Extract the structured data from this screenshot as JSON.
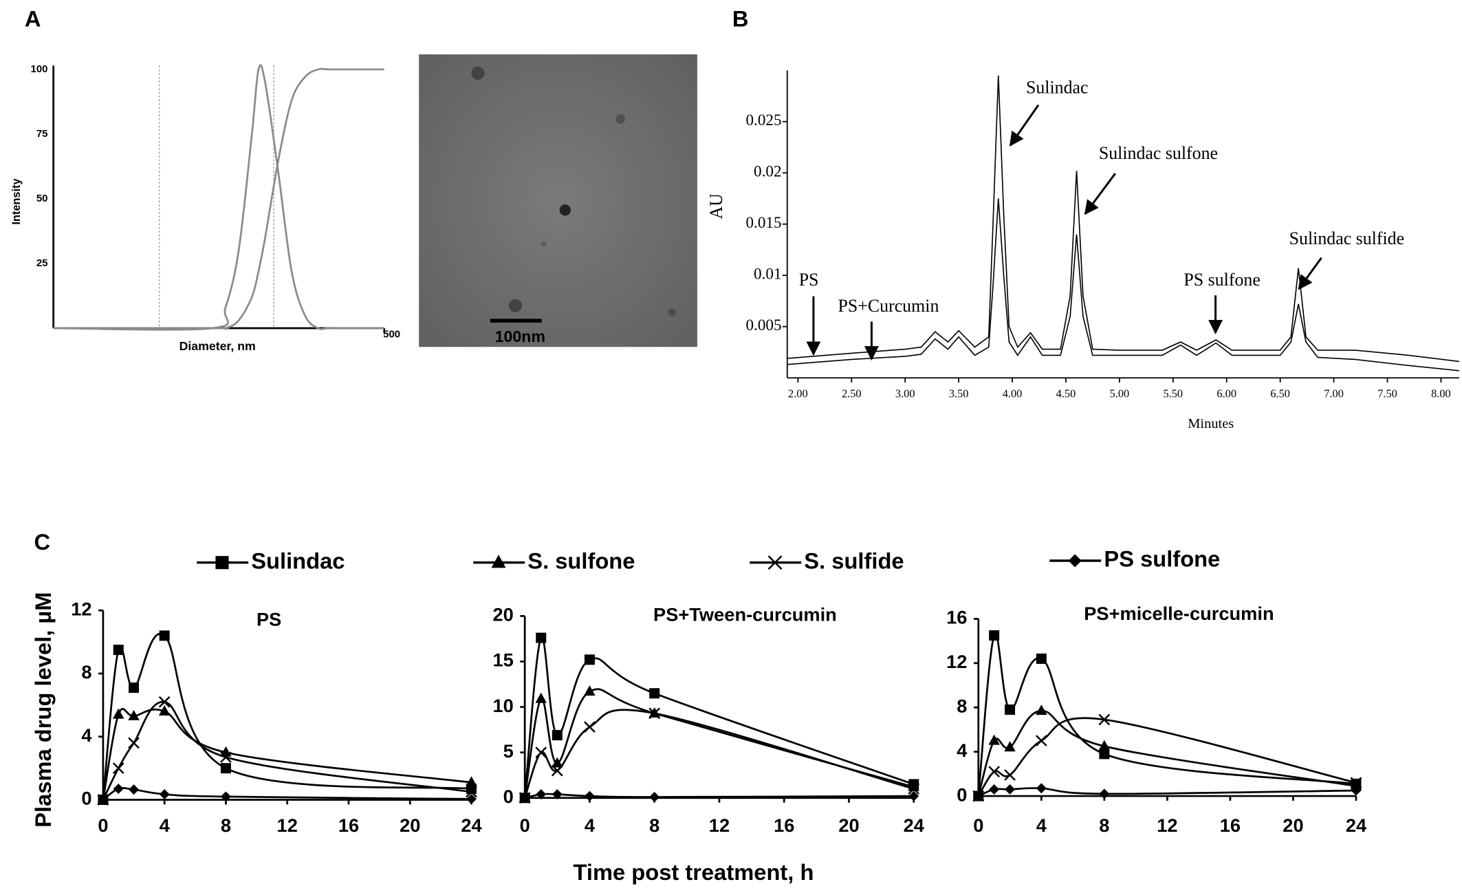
{
  "panel_labels": [
    "A",
    "B",
    "C"
  ],
  "tem_image": {
    "scale_bar": "100nm"
  },
  "chart_data": [
    {
      "type": "line",
      "xlabel": "Diameter, nm",
      "ylabel": "Intensity",
      "x": [
        0,
        240,
        260,
        280,
        300,
        310,
        320,
        340,
        360,
        380,
        400,
        420,
        500
      ],
      "series": [
        {
          "color": "#8a8a8a",
          "values": [
            0,
            0,
            8,
            30,
            75,
            100,
            95,
            60,
            22,
            5,
            0,
            0,
            0
          ]
        },
        {
          "color": "#8a8a8a",
          "values": [
            0,
            0,
            0,
            3,
            12,
            22,
            35,
            65,
            88,
            97,
            100,
            100,
            100
          ]
        }
      ],
      "vlines": [
        160,
        333
      ],
      "smooth": true,
      "xlim": [
        0,
        500
      ],
      "ylim": [
        0,
        100
      ],
      "xticks": [
        500
      ],
      "yticks": [
        25,
        50,
        75,
        100
      ]
    },
    {
      "type": "line",
      "xlabel": "Minutes",
      "ylabel": "AU",
      "x": [
        1.9,
        2.5,
        3.0,
        3.15,
        3.28,
        3.4,
        3.5,
        3.65,
        3.78,
        3.82,
        3.87,
        3.92,
        3.97,
        4.05,
        4.17,
        4.28,
        4.45,
        4.54,
        4.6,
        4.66,
        4.75,
        5.0,
        5.4,
        5.57,
        5.72,
        5.9,
        6.05,
        6.5,
        6.6,
        6.67,
        6.74,
        6.85,
        7.2,
        7.7,
        8.17
      ],
      "series": [
        {
          "color": "#000000",
          "values": [
            0.0019,
            0.0024,
            0.0028,
            0.003,
            0.0045,
            0.0035,
            0.0046,
            0.003,
            0.004,
            0.015,
            0.0295,
            0.016,
            0.005,
            0.003,
            0.0044,
            0.0028,
            0.0028,
            0.008,
            0.0202,
            0.008,
            0.0028,
            0.0027,
            0.0027,
            0.0035,
            0.0027,
            0.0037,
            0.0027,
            0.0027,
            0.004,
            0.0107,
            0.004,
            0.0027,
            0.0027,
            0.0022,
            0.0016
          ]
        },
        {
          "color": "#000000",
          "values": [
            0.0013,
            0.0018,
            0.0021,
            0.0023,
            0.0038,
            0.0028,
            0.004,
            0.0022,
            0.003,
            0.009,
            0.0175,
            0.01,
            0.0035,
            0.0022,
            0.004,
            0.0022,
            0.0022,
            0.006,
            0.014,
            0.006,
            0.0022,
            0.0022,
            0.0022,
            0.0032,
            0.0022,
            0.0034,
            0.0022,
            0.0022,
            0.0035,
            0.0072,
            0.0035,
            0.002,
            0.0018,
            0.0012,
            0.0007
          ]
        }
      ],
      "annotations": [
        "PS",
        "PS+Curcumin",
        "Sulindac",
        "Sulindac sulfone",
        "PS sulfone",
        "Sulindac sulfide"
      ],
      "smooth": false,
      "xlim": [
        1.9,
        8.17
      ],
      "ylim": [
        0,
        0.03
      ],
      "xticks": [
        {
          "value": 2,
          "label": "2.00"
        },
        {
          "value": 2.5,
          "label": "2.50"
        },
        {
          "value": 3,
          "label": "3.00"
        },
        {
          "value": 3.5,
          "label": "3.50"
        },
        {
          "value": 4,
          "label": "4.00"
        },
        {
          "value": 4.5,
          "label": "4.50"
        },
        {
          "value": 5,
          "label": "5.00"
        },
        {
          "value": 5.5,
          "label": "5.50"
        },
        {
          "value": 6,
          "label": "6.00"
        },
        {
          "value": 6.5,
          "label": "6.50"
        },
        {
          "value": 7,
          "label": "7.00"
        },
        {
          "value": 7.5,
          "label": "7.50"
        },
        {
          "value": 8,
          "label": "8.00"
        }
      ],
      "yticks": [
        0.005,
        0.01,
        0.015,
        0.02,
        0.025
      ]
    },
    {
      "type": "line",
      "title": "PS",
      "ylabel": "Plasma drug level, µM",
      "legend": true,
      "x": [
        0,
        1,
        2,
        4,
        8,
        24
      ],
      "series": [
        {
          "name": "Sulindac",
          "marker": "square",
          "color": "#000000",
          "values": [
            0,
            9.5,
            7.1,
            10.4,
            2.0,
            0.7
          ]
        },
        {
          "name": "S. sulfone",
          "marker": "triangle",
          "color": "#000000",
          "values": [
            0,
            5.4,
            5.3,
            5.6,
            3.0,
            1.1
          ]
        },
        {
          "name": "S. sulfide",
          "marker": "x",
          "color": "#000000",
          "values": [
            0,
            2.0,
            3.6,
            6.2,
            2.7,
            0.5
          ]
        },
        {
          "name": "PS sulfone",
          "marker": "diamond",
          "color": "#000000",
          "values": [
            0,
            0.7,
            0.65,
            0.35,
            0.2,
            0.05
          ]
        }
      ],
      "smooth": true,
      "xlim": [
        0,
        24
      ],
      "ylim": [
        0,
        12
      ],
      "xticks": [
        0,
        4,
        8,
        12,
        16,
        20,
        24
      ],
      "yticks": [
        0,
        4,
        8,
        12
      ]
    },
    {
      "type": "line",
      "title": "PS+Tween-curcumin",
      "xlabel": "Time post treatment, h",
      "x": [
        0,
        1,
        2,
        4,
        8,
        24
      ],
      "series": [
        {
          "marker": "square",
          "color": "#000000",
          "values": [
            0,
            17.6,
            6.9,
            15.2,
            11.5,
            1.5
          ]
        },
        {
          "marker": "triangle",
          "color": "#000000",
          "values": [
            0,
            10.9,
            3.8,
            11.7,
            9.3,
            1.2
          ]
        },
        {
          "marker": "x",
          "color": "#000000",
          "values": [
            0,
            5.0,
            3.0,
            7.8,
            9.3,
            1.0
          ]
        },
        {
          "marker": "diamond",
          "color": "#000000",
          "values": [
            0,
            0.4,
            0.4,
            0.2,
            0.1,
            0.2
          ]
        }
      ],
      "smooth": true,
      "xlim": [
        0,
        24
      ],
      "ylim": [
        0,
        20
      ],
      "xticks": [
        0,
        4,
        8,
        12,
        16,
        20,
        24
      ],
      "yticks": [
        0,
        5,
        10,
        15,
        20
      ]
    },
    {
      "type": "line",
      "title": "PS+micelle-curcumin",
      "x": [
        0,
        1,
        2,
        4,
        8,
        24
      ],
      "series": [
        {
          "marker": "square",
          "color": "#000000",
          "values": [
            0,
            14.5,
            7.8,
            12.4,
            3.8,
            1.1
          ]
        },
        {
          "marker": "triangle",
          "color": "#000000",
          "values": [
            0,
            5.0,
            4.4,
            7.7,
            4.5,
            0.9
          ]
        },
        {
          "marker": "x",
          "color": "#000000",
          "values": [
            0,
            2.2,
            1.9,
            5.0,
            6.9,
            1.2
          ]
        },
        {
          "marker": "diamond",
          "color": "#000000",
          "values": [
            0,
            0.6,
            0.6,
            0.7,
            0.2,
            0.5
          ]
        }
      ],
      "smooth": true,
      "xlim": [
        0,
        24
      ],
      "ylim": [
        0,
        16
      ],
      "xticks": [
        0,
        4,
        8,
        12,
        16,
        20,
        24
      ],
      "yticks": [
        0,
        4,
        8,
        12,
        16
      ]
    }
  ]
}
